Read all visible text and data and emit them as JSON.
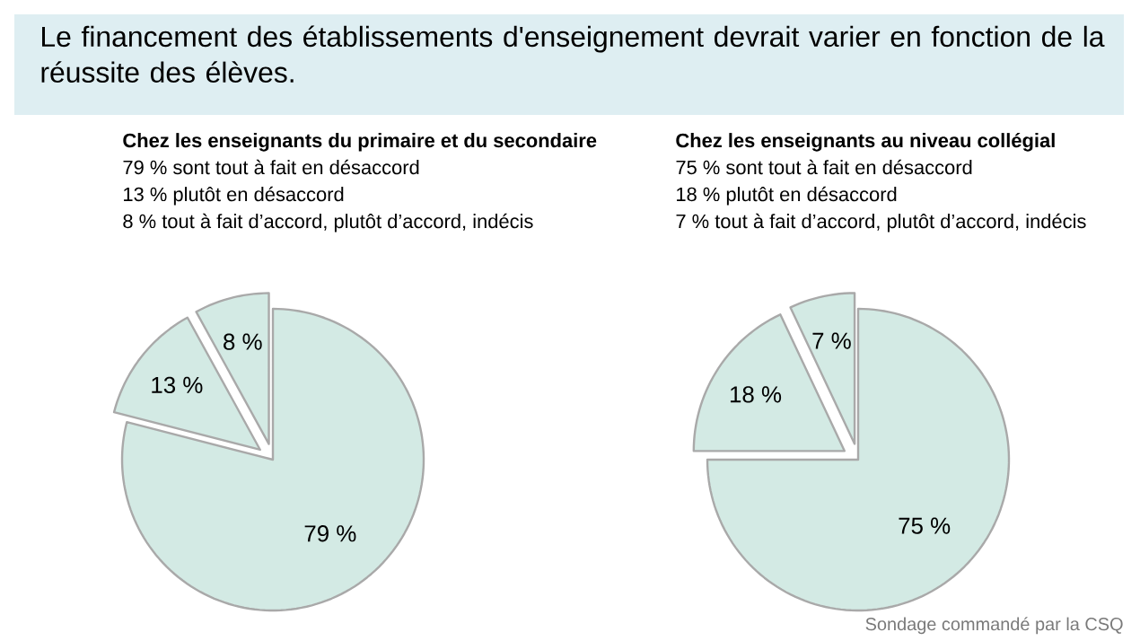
{
  "chart_data": [
    {
      "type": "pie",
      "title": "Le financement des établissements d'enseignement devrait varier en fonction de la réussite des élèves.",
      "subtitle": "**Chez les enseignants du primaire et du secondaire**",
      "categories": [
        null,
        null,
        null
      ],
      "values": [
        79,
        13,
        8
      ],
      "value_labels": [
        "79 %",
        "13 %",
        "8 %"
      ],
      "colors": [
        "#d3eae4",
        "#d3eae4",
        "#d3eae4"
      ],
      "annotations": [
        "79 % sont tout à fait en désaccord",
        "13 % plutôt en désaccord",
        "8 % tout à fait d’accord, plutôt d’accord, indécis"
      ]
    },
    {
      "type": "pie",
      "subtitle": "**Chez les enseignants au niveau collégial**",
      "categories": [
        null,
        null,
        null
      ],
      "values": [
        75,
        18,
        7
      ],
      "value_labels": [
        "75 %",
        "18 %",
        "7 %"
      ],
      "colors": [
        "#d3eae4",
        "#d3eae4",
        "#d3eae4"
      ],
      "annotations": [
        "75 % sont tout à fait en désaccord",
        "18 % plutôt en désaccord",
        "7 % tout à fait d’accord, plutôt d’accord, indécis",
        "Sondage commandé par la CSQ"
      ]
    }
  ]
}
